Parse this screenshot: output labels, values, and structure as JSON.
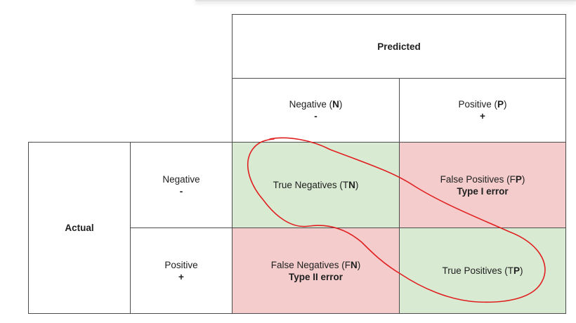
{
  "header": {
    "predicted": "Predicted",
    "actual": "Actual"
  },
  "columns": [
    {
      "pre": "Negative (",
      "key": "N",
      "post": ")",
      "sign": "-"
    },
    {
      "pre": "Positive (",
      "key": "P",
      "post": ")",
      "sign": "+"
    }
  ],
  "rows": [
    {
      "label": "Negative",
      "sign": "-"
    },
    {
      "label": "Positive",
      "sign": "+"
    }
  ],
  "cells": {
    "tn": {
      "pre": "True Negatives (T",
      "key": "N",
      "post": ")",
      "color": "#d9ead3"
    },
    "fp": {
      "pre": "False Positives (F",
      "key": "P",
      "post": ")",
      "note": "Type I error",
      "color": "#f4cccc"
    },
    "fn": {
      "pre": "False Negatives (F",
      "key": "N",
      "post": ")",
      "note": "Type II error",
      "color": "#f4cccc"
    },
    "tp": {
      "pre": "True Positives (T",
      "key": "P",
      "post": ")",
      "color": "#d9ead3"
    }
  },
  "annotation": {
    "color": "#e02020"
  }
}
